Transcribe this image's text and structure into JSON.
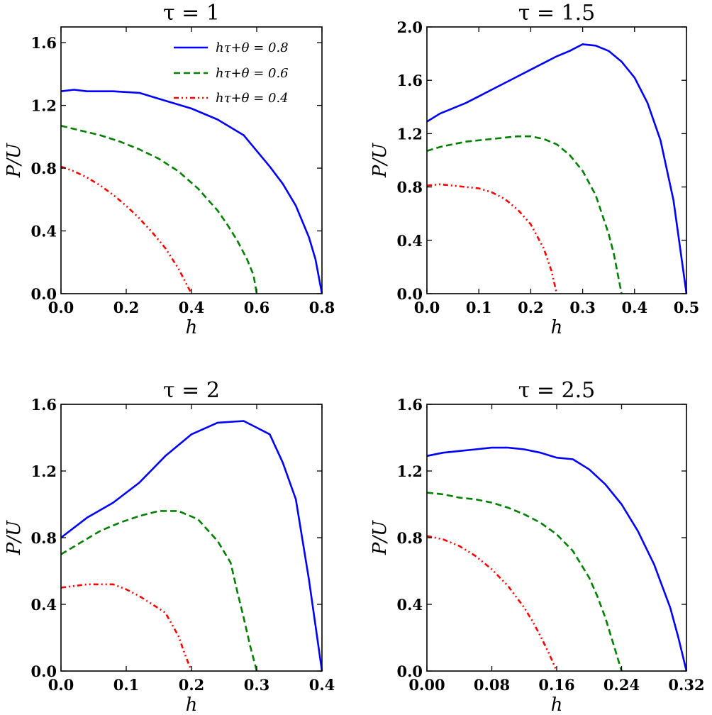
{
  "legend": {
    "entries": [
      {
        "label": "hτ+θ = 0.8",
        "color": "#0000ff",
        "dash": "solid"
      },
      {
        "label": "hτ+θ = 0.6",
        "color": "#008000",
        "dash": "dashed"
      },
      {
        "label": "hτ+θ = 0.4",
        "color": "#ff0000",
        "dash": "dashdotdot"
      }
    ],
    "placement": "upper-right of first panel"
  },
  "chart_data": [
    {
      "type": "line",
      "title": "τ = 1",
      "xlabel": "h",
      "ylabel": "P/U",
      "xlim": [
        0,
        0.8
      ],
      "ylim": [
        0,
        1.7
      ],
      "xticks": [
        "0.0",
        "0.2",
        "0.4",
        "0.6",
        "0.8"
      ],
      "xtick_values": [
        0,
        0.2,
        0.4,
        0.6,
        0.8
      ],
      "yticks": [
        "0.0",
        "0.4",
        "0.8",
        "1.2",
        "1.6"
      ],
      "ytick_values": [
        0,
        0.4,
        0.8,
        1.2,
        1.6
      ],
      "grid": false,
      "series": [
        {
          "name": "hτ+θ = 0.8",
          "color": "#0000ff",
          "dash": "solid",
          "x": [
            0,
            0.04,
            0.08,
            0.16,
            0.24,
            0.32,
            0.4,
            0.48,
            0.56,
            0.6,
            0.64,
            0.68,
            0.72,
            0.76,
            0.78,
            0.8
          ],
          "y": [
            1.29,
            1.3,
            1.29,
            1.29,
            1.28,
            1.23,
            1.18,
            1.11,
            1.01,
            0.91,
            0.81,
            0.7,
            0.56,
            0.36,
            0.22,
            0.0
          ]
        },
        {
          "name": "hτ+θ = 0.6",
          "color": "#008000",
          "dash": "dashed",
          "x": [
            0,
            0.06,
            0.12,
            0.18,
            0.24,
            0.3,
            0.36,
            0.42,
            0.48,
            0.51,
            0.54,
            0.57,
            0.59,
            0.6
          ],
          "y": [
            1.07,
            1.04,
            1.01,
            0.97,
            0.92,
            0.86,
            0.78,
            0.67,
            0.53,
            0.44,
            0.34,
            0.22,
            0.12,
            0.0
          ]
        },
        {
          "name": "hτ+θ = 0.4",
          "color": "#ff0000",
          "dash": "dashdotdot",
          "x": [
            0,
            0.04,
            0.08,
            0.12,
            0.16,
            0.2,
            0.24,
            0.28,
            0.32,
            0.36,
            0.38,
            0.4
          ],
          "y": [
            0.81,
            0.78,
            0.74,
            0.69,
            0.63,
            0.56,
            0.48,
            0.39,
            0.29,
            0.16,
            0.08,
            0.0
          ]
        }
      ]
    },
    {
      "type": "line",
      "title": "τ = 1.5",
      "xlabel": "h",
      "ylabel": "P/U",
      "xlim": [
        0,
        0.5
      ],
      "ylim": [
        0,
        2.0
      ],
      "xticks": [
        "0.0",
        "0.1",
        "0.2",
        "0.3",
        "0.4",
        "0.5"
      ],
      "xtick_values": [
        0,
        0.1,
        0.2,
        0.3,
        0.4,
        0.5
      ],
      "yticks": [
        "0.0",
        "0.4",
        "0.8",
        "1.2",
        "1.6",
        "2.0"
      ],
      "ytick_values": [
        0,
        0.4,
        0.8,
        1.2,
        1.6,
        2.0
      ],
      "grid": false,
      "series": [
        {
          "name": "hτ+θ = 0.8",
          "color": "#0000ff",
          "dash": "solid",
          "x": [
            0,
            0.025,
            0.05,
            0.075,
            0.1,
            0.125,
            0.15,
            0.175,
            0.2,
            0.225,
            0.25,
            0.275,
            0.3,
            0.325,
            0.35,
            0.375,
            0.4,
            0.425,
            0.45,
            0.475,
            0.5
          ],
          "y": [
            1.29,
            1.35,
            1.39,
            1.43,
            1.48,
            1.53,
            1.58,
            1.63,
            1.68,
            1.73,
            1.78,
            1.82,
            1.87,
            1.86,
            1.82,
            1.74,
            1.62,
            1.43,
            1.15,
            0.7,
            0.0
          ]
        },
        {
          "name": "hτ+θ = 0.6",
          "color": "#008000",
          "dash": "dashed",
          "x": [
            0,
            0.025,
            0.05,
            0.075,
            0.1,
            0.125,
            0.15,
            0.175,
            0.2,
            0.225,
            0.25,
            0.275,
            0.3,
            0.325,
            0.35,
            0.36,
            0.375
          ],
          "y": [
            1.07,
            1.1,
            1.12,
            1.14,
            1.15,
            1.16,
            1.17,
            1.18,
            1.18,
            1.16,
            1.12,
            1.04,
            0.92,
            0.74,
            0.45,
            0.3,
            0.0
          ]
        },
        {
          "name": "hτ+θ = 0.4",
          "color": "#ff0000",
          "dash": "dashdotdot",
          "x": [
            0,
            0.025,
            0.05,
            0.075,
            0.1,
            0.125,
            0.15,
            0.175,
            0.2,
            0.225,
            0.24,
            0.25
          ],
          "y": [
            0.81,
            0.82,
            0.81,
            0.8,
            0.79,
            0.76,
            0.71,
            0.63,
            0.52,
            0.34,
            0.17,
            0.0
          ]
        }
      ]
    },
    {
      "type": "line",
      "title": "τ = 2",
      "xlabel": "h",
      "ylabel": "P/U",
      "xlim": [
        0,
        0.4
      ],
      "ylim": [
        0,
        1.6
      ],
      "xticks": [
        "0.0",
        "0.1",
        "0.2",
        "0.3",
        "0.4"
      ],
      "xtick_values": [
        0,
        0.1,
        0.2,
        0.3,
        0.4
      ],
      "yticks": [
        "0.0",
        "0.4",
        "0.8",
        "1.2",
        "1.6"
      ],
      "ytick_values": [
        0,
        0.4,
        0.8,
        1.2,
        1.6
      ],
      "grid": false,
      "series": [
        {
          "name": "hτ+θ = 0.8",
          "color": "#0000ff",
          "dash": "solid",
          "x": [
            0,
            0.04,
            0.08,
            0.12,
            0.16,
            0.2,
            0.24,
            0.28,
            0.3,
            0.32,
            0.34,
            0.36,
            0.38,
            0.4
          ],
          "y": [
            0.8,
            0.92,
            1.01,
            1.13,
            1.29,
            1.42,
            1.49,
            1.5,
            1.46,
            1.42,
            1.25,
            1.03,
            0.55,
            0.0
          ]
        },
        {
          "name": "hτ+θ = 0.6",
          "color": "#008000",
          "dash": "dashed",
          "x": [
            0,
            0.03,
            0.06,
            0.09,
            0.12,
            0.15,
            0.18,
            0.21,
            0.24,
            0.26,
            0.27,
            0.28,
            0.29,
            0.3
          ],
          "y": [
            0.7,
            0.77,
            0.84,
            0.89,
            0.93,
            0.96,
            0.96,
            0.91,
            0.78,
            0.65,
            0.48,
            0.32,
            0.15,
            0.0
          ]
        },
        {
          "name": "hτ+θ = 0.4",
          "color": "#ff0000",
          "dash": "dashdotdot",
          "x": [
            0,
            0.02,
            0.04,
            0.06,
            0.08,
            0.1,
            0.12,
            0.14,
            0.16,
            0.18,
            0.19,
            0.2
          ],
          "y": [
            0.5,
            0.51,
            0.52,
            0.52,
            0.52,
            0.49,
            0.45,
            0.4,
            0.35,
            0.21,
            0.1,
            0.0
          ]
        }
      ]
    },
    {
      "type": "line",
      "title": "τ = 2.5",
      "xlabel": "h",
      "ylabel": "P/U",
      "xlim": [
        0,
        0.32
      ],
      "ylim": [
        0,
        1.6
      ],
      "xticks": [
        "0.00",
        "0.08",
        "0.16",
        "0.24",
        "0.32"
      ],
      "xtick_values": [
        0,
        0.08,
        0.16,
        0.24,
        0.32
      ],
      "yticks": [
        "0.0",
        "0.4",
        "0.8",
        "1.2",
        "1.6"
      ],
      "ytick_values": [
        0,
        0.4,
        0.8,
        1.2,
        1.6
      ],
      "grid": false,
      "series": [
        {
          "name": "hτ+θ = 0.8",
          "color": "#0000ff",
          "dash": "solid",
          "x": [
            0,
            0.02,
            0.04,
            0.06,
            0.08,
            0.1,
            0.12,
            0.14,
            0.16,
            0.18,
            0.2,
            0.22,
            0.24,
            0.26,
            0.28,
            0.3,
            0.31,
            0.32
          ],
          "y": [
            1.29,
            1.31,
            1.32,
            1.33,
            1.34,
            1.34,
            1.33,
            1.31,
            1.28,
            1.27,
            1.21,
            1.12,
            1.0,
            0.84,
            0.64,
            0.38,
            0.2,
            0.0
          ]
        },
        {
          "name": "hτ+θ = 0.6",
          "color": "#008000",
          "dash": "dashed",
          "x": [
            0,
            0.02,
            0.04,
            0.06,
            0.08,
            0.1,
            0.12,
            0.14,
            0.16,
            0.18,
            0.2,
            0.21,
            0.22,
            0.23,
            0.24
          ],
          "y": [
            1.07,
            1.06,
            1.04,
            1.03,
            1.01,
            0.98,
            0.94,
            0.89,
            0.82,
            0.72,
            0.56,
            0.45,
            0.32,
            0.16,
            0.0
          ]
        },
        {
          "name": "hτ+θ = 0.4",
          "color": "#ff0000",
          "dash": "dashdotdot",
          "x": [
            0,
            0.02,
            0.04,
            0.06,
            0.08,
            0.1,
            0.12,
            0.13,
            0.14,
            0.15,
            0.16
          ],
          "y": [
            0.81,
            0.79,
            0.75,
            0.69,
            0.61,
            0.51,
            0.38,
            0.3,
            0.21,
            0.11,
            0.0
          ]
        }
      ]
    }
  ]
}
